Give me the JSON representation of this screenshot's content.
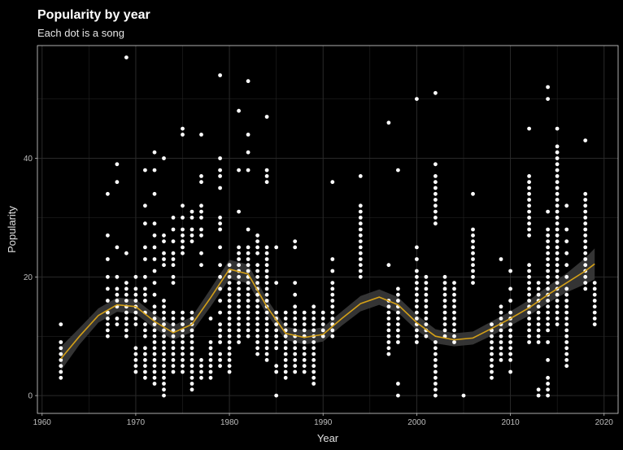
{
  "chart_data": {
    "type": "scatter",
    "title": "Popularity by year",
    "subtitle": "Each dot is a song",
    "xlabel": "Year",
    "ylabel": "Popularity",
    "xlim": [
      1959.5,
      2021.5
    ],
    "ylim": [
      -3,
      59
    ],
    "xticks": [
      1960,
      1970,
      1980,
      1990,
      2000,
      2010,
      2020
    ],
    "yticks": [
      0,
      20,
      40
    ],
    "grid": true,
    "colors": {
      "background": "#000000",
      "panel_border": "#d9d9d9",
      "grid": "#2a2a2a",
      "point": "#ffffff",
      "smooth_line": "#d4a017",
      "ribbon": "#3a3a3a"
    },
    "smooth": {
      "x": [
        1962,
        1964,
        1966,
        1968,
        1970,
        1972,
        1974,
        1976,
        1978,
        1980,
        1982,
        1984,
        1986,
        1988,
        1990,
        1992,
        1994,
        1996,
        1998,
        2000,
        2002,
        2004,
        2006,
        2008,
        2010,
        2012,
        2014,
        2016,
        2018,
        2019
      ],
      "y": [
        6.2,
        10.0,
        13.5,
        15.3,
        15.0,
        12.5,
        10.6,
        12.0,
        16.5,
        21.3,
        20.5,
        15.0,
        10.5,
        9.8,
        10.3,
        13.0,
        15.5,
        16.6,
        15.3,
        12.3,
        10.0,
        9.4,
        9.7,
        11.3,
        13.0,
        14.8,
        17.0,
        19.0,
        21.0,
        22.2
      ],
      "lower": [
        4.2,
        8.6,
        12.3,
        14.1,
        13.8,
        11.3,
        9.4,
        10.7,
        15.0,
        19.7,
        18.9,
        13.7,
        9.4,
        8.6,
        9.1,
        11.8,
        14.2,
        15.3,
        14.0,
        11.0,
        8.8,
        8.3,
        8.6,
        10.1,
        11.8,
        13.5,
        15.6,
        17.4,
        18.8,
        19.6
      ],
      "upper": [
        8.2,
        11.4,
        14.7,
        16.5,
        16.2,
        13.7,
        11.8,
        13.3,
        18.0,
        22.9,
        22.1,
        16.3,
        11.6,
        11.0,
        11.5,
        14.2,
        16.8,
        17.9,
        16.6,
        13.6,
        11.2,
        10.5,
        10.8,
        12.5,
        14.2,
        16.1,
        18.4,
        20.6,
        23.2,
        24.8
      ]
    },
    "points": [
      {
        "year": 1962,
        "values": [
          12,
          9,
          8,
          7,
          6,
          5,
          4,
          3
        ]
      },
      {
        "year": 1967,
        "values": [
          34,
          27,
          23,
          20,
          18,
          16,
          14,
          13,
          12,
          11,
          10
        ]
      },
      {
        "year": 1968,
        "values": [
          39,
          36,
          25,
          20,
          18,
          17,
          16,
          15,
          13,
          12
        ]
      },
      {
        "year": 1969,
        "values": [
          57,
          24,
          19,
          18,
          17,
          16,
          15,
          14,
          13,
          12,
          11,
          10
        ]
      },
      {
        "year": 1970,
        "values": [
          20,
          18,
          17,
          16,
          15,
          14,
          13,
          12,
          8,
          7,
          6,
          5,
          4
        ]
      },
      {
        "year": 1971,
        "values": [
          38,
          32,
          29,
          25,
          23,
          20,
          18,
          17,
          16,
          14,
          12,
          11,
          10,
          8,
          7,
          6,
          5,
          4,
          3
        ]
      },
      {
        "year": 1972,
        "values": [
          41,
          38,
          34,
          29,
          27,
          25,
          23,
          21,
          19,
          17,
          15,
          14,
          13,
          12,
          11,
          10,
          9,
          8,
          7,
          6,
          5,
          4,
          3,
          2
        ]
      },
      {
        "year": 1973,
        "values": [
          40,
          27,
          26,
          24,
          23,
          22,
          16,
          15,
          14,
          13,
          12,
          11,
          10,
          9,
          8,
          7,
          6,
          5,
          4,
          3,
          2,
          1,
          0
        ]
      },
      {
        "year": 1974,
        "values": [
          30,
          28,
          26,
          24,
          23,
          22,
          20,
          19,
          14,
          13,
          12,
          11,
          10,
          9,
          8,
          7,
          6,
          5,
          4
        ]
      },
      {
        "year": 1975,
        "values": [
          45,
          44,
          32,
          30,
          28,
          27,
          26,
          25,
          24,
          14,
          13,
          12,
          11,
          10,
          9,
          8,
          7,
          6,
          5,
          4
        ]
      },
      {
        "year": 1976,
        "values": [
          31,
          30,
          28,
          27,
          26,
          14,
          13,
          12,
          11,
          10,
          9,
          8,
          7,
          6,
          5,
          4,
          3,
          2,
          1
        ]
      },
      {
        "year": 1977,
        "values": [
          44,
          37,
          36,
          32,
          31,
          30,
          28,
          27,
          24,
          22,
          6,
          5,
          4,
          3
        ]
      },
      {
        "year": 1978,
        "values": [
          13,
          9,
          8,
          7,
          6,
          5,
          4,
          3
        ]
      },
      {
        "year": 1979,
        "values": [
          54,
          40,
          38,
          37,
          35,
          30,
          29,
          28,
          25,
          22,
          20,
          18,
          16,
          14,
          12,
          11,
          10,
          9,
          7,
          6,
          5
        ]
      },
      {
        "year": 1980,
        "values": [
          22,
          21,
          20,
          19,
          18,
          17,
          16,
          15,
          14,
          13,
          12,
          11,
          10,
          9,
          8,
          7,
          6,
          5,
          4
        ]
      },
      {
        "year": 1981,
        "values": [
          48,
          38,
          31,
          25,
          24,
          23,
          22,
          21,
          20,
          19,
          18,
          17,
          16,
          15,
          14,
          13,
          12,
          11,
          10,
          9
        ]
      },
      {
        "year": 1982,
        "values": [
          53,
          44,
          41,
          38,
          28,
          25,
          24,
          23,
          22,
          21,
          20,
          19,
          18,
          17,
          16,
          15,
          14,
          13,
          12,
          11,
          10
        ]
      },
      {
        "year": 1983,
        "values": [
          27,
          26,
          25,
          24,
          22,
          21,
          20,
          19,
          18,
          17,
          16,
          15,
          14,
          13,
          12,
          11,
          10,
          9,
          8,
          7
        ]
      },
      {
        "year": 1984,
        "values": [
          47,
          38,
          37,
          36,
          25,
          24,
          23,
          22,
          21,
          20,
          19,
          18,
          17,
          16,
          15,
          14,
          13,
          12,
          11,
          10,
          9,
          8,
          7,
          6
        ]
      },
      {
        "year": 1985,
        "values": [
          25,
          19,
          14,
          13,
          12,
          11,
          10,
          9,
          8,
          5,
          4,
          0
        ]
      },
      {
        "year": 1986,
        "values": [
          14,
          13,
          12,
          11,
          10,
          9,
          8,
          7,
          6,
          5,
          4,
          3
        ]
      },
      {
        "year": 1987,
        "values": [
          26,
          25,
          19,
          17,
          15,
          14,
          13,
          12,
          11,
          10,
          9,
          8,
          7,
          6,
          5,
          4
        ]
      },
      {
        "year": 1988,
        "values": [
          14,
          13,
          12,
          11,
          10,
          9,
          8,
          7,
          6,
          5,
          4
        ]
      },
      {
        "year": 1989,
        "values": [
          15,
          14,
          13,
          12,
          11,
          10,
          9,
          8,
          7,
          6,
          5,
          4,
          3,
          2
        ]
      },
      {
        "year": 1990,
        "values": [
          14,
          13,
          12,
          11,
          10
        ]
      },
      {
        "year": 1991,
        "values": [
          36,
          23,
          21,
          19,
          18,
          17,
          16,
          15,
          14,
          13,
          12,
          11,
          10
        ]
      },
      {
        "year": 1994,
        "values": [
          37,
          32,
          31,
          30,
          29,
          28,
          27,
          26,
          25,
          24,
          23,
          22,
          21,
          20
        ]
      },
      {
        "year": 1997,
        "values": [
          46,
          22,
          16,
          15,
          14,
          13,
          12,
          11,
          10,
          9,
          8,
          7
        ]
      },
      {
        "year": 1998,
        "values": [
          38,
          18,
          17,
          16,
          15,
          14,
          13,
          12,
          11,
          10,
          9,
          2,
          0
        ]
      },
      {
        "year": 2000,
        "values": [
          50,
          25,
          23,
          21,
          20,
          19,
          18,
          17,
          16,
          15,
          14,
          13,
          12,
          11,
          10,
          9
        ]
      },
      {
        "year": 2001,
        "values": [
          20,
          19,
          18,
          17,
          16,
          15,
          14,
          13,
          12,
          11,
          10
        ]
      },
      {
        "year": 2002,
        "values": [
          51,
          39,
          37,
          36,
          35,
          34,
          33,
          32,
          31,
          30,
          29,
          9,
          8,
          7,
          6,
          5,
          4,
          3,
          2,
          1,
          0
        ]
      },
      {
        "year": 2003,
        "values": [
          20,
          19,
          18,
          17,
          16,
          15,
          14,
          13,
          12,
          11,
          10
        ]
      },
      {
        "year": 2004,
        "values": [
          19,
          18,
          17,
          16,
          15,
          14,
          13,
          12,
          11,
          10,
          9
        ]
      },
      {
        "year": 2005,
        "values": [
          0
        ]
      },
      {
        "year": 2006,
        "values": [
          34,
          28,
          27,
          26,
          25,
          24,
          23,
          22,
          21,
          20,
          19
        ]
      },
      {
        "year": 2008,
        "values": [
          12,
          11,
          10,
          9,
          8,
          7,
          6,
          5,
          4,
          3
        ]
      },
      {
        "year": 2009,
        "values": [
          23,
          15,
          14,
          13,
          12,
          11,
          10,
          9,
          8,
          7,
          6
        ]
      },
      {
        "year": 2010,
        "values": [
          21,
          18,
          16,
          14,
          13,
          12,
          11,
          10,
          9,
          8,
          7,
          6,
          4
        ]
      },
      {
        "year": 2012,
        "values": [
          45,
          37,
          36,
          35,
          34,
          33,
          32,
          31,
          30,
          29,
          28,
          27,
          22,
          21,
          20,
          19,
          18,
          17,
          16,
          15,
          14,
          13,
          12,
          11,
          10,
          9
        ]
      },
      {
        "year": 2013,
        "values": [
          19,
          18,
          17,
          16,
          15,
          14,
          13,
          12,
          11,
          10,
          9,
          1,
          0
        ]
      },
      {
        "year": 2014,
        "values": [
          52,
          50,
          31,
          28,
          27,
          26,
          25,
          24,
          23,
          22,
          21,
          20,
          19,
          18,
          17,
          16,
          15,
          14,
          13,
          12,
          11,
          9,
          6,
          3,
          2,
          1,
          0
        ]
      },
      {
        "year": 2015,
        "values": [
          45,
          42,
          41,
          40,
          39,
          38,
          37,
          36,
          35,
          34,
          33,
          32,
          31,
          30,
          29,
          28,
          27,
          26,
          25,
          24,
          23,
          22,
          21,
          20,
          19,
          18,
          17,
          16,
          15,
          14,
          13,
          12
        ]
      },
      {
        "year": 2016,
        "values": [
          32,
          28,
          26,
          24,
          22,
          20,
          18,
          17,
          16,
          15,
          14,
          13,
          12,
          11,
          10,
          9,
          8,
          7,
          6,
          5
        ]
      },
      {
        "year": 2018,
        "values": [
          43,
          34,
          33,
          32,
          31,
          30,
          29,
          28,
          27,
          26,
          25,
          24,
          23,
          22,
          21,
          20,
          19,
          18
        ]
      },
      {
        "year": 2019,
        "values": [
          19,
          18,
          17,
          16,
          15,
          14,
          13,
          12
        ]
      }
    ]
  }
}
